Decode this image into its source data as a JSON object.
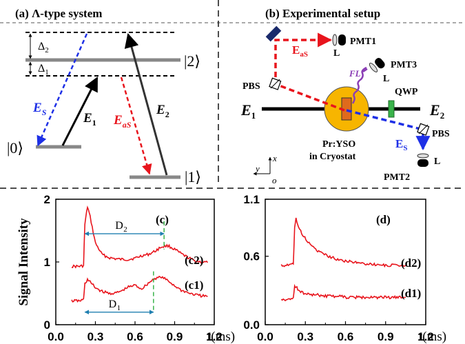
{
  "panel_a": {
    "title": "(a) Λ-type  system",
    "levels": {
      "level0": "|0⟩",
      "level1": "|1⟩",
      "level2": "|2⟩"
    },
    "detunings": {
      "d2": "Δ",
      "d2_sub": "2",
      "d1": "Δ",
      "d1_sub": "1"
    },
    "fields": {
      "es": "E",
      "es_sub": "S",
      "e1": "E",
      "e1_sub": "1",
      "eas": "E",
      "eas_sub": "aS",
      "e2": "E",
      "e2_sub": "2"
    }
  },
  "panel_b": {
    "title": "(b) Experimental setup",
    "labels": {
      "pmt1": "PMT1",
      "pmt2": "PMT2",
      "pmt3": "PMT3",
      "lens": "L",
      "fl": "FL",
      "qwp": "QWP",
      "pbs": "PBS",
      "sample_line1": "Pr:YSO",
      "sample_line2": "in Cryostat",
      "e1": "E",
      "e1_sub": "1",
      "e2": "E",
      "e2_sub": "2",
      "eas": "E",
      "eas_sub": "aS",
      "es": "E",
      "es_sub": "S",
      "axis_x": "x",
      "axis_y": "y",
      "axis_o": "o"
    }
  },
  "colors": {
    "red": "#e8141c",
    "blue": "#1e30e6",
    "sample": "#f7b500",
    "crystal": "#e06a1c",
    "qwp": "#39b34a",
    "fl": "#8a3db5",
    "gray": "#888888"
  },
  "chart_data": [
    {
      "type": "line",
      "panel": "(c)",
      "ylabel": "Signal Intensity",
      "xlabel": "t(ms)",
      "xlim": [
        0.0,
        1.2
      ],
      "ylim": [
        0,
        2
      ],
      "xticks": [
        "0.0",
        "0.3",
        "0.6",
        "0.9",
        "1.2"
      ],
      "yticks": [
        "0",
        "1",
        "2"
      ],
      "x_tick_values": [
        0.0,
        0.3,
        0.6,
        0.9,
        1.2
      ],
      "y_tick_values": [
        0,
        1,
        2
      ],
      "series": [
        {
          "name": "(c2)",
          "x": [
            0.12,
            0.18,
            0.21,
            0.22,
            0.24,
            0.26,
            0.3,
            0.35,
            0.4,
            0.45,
            0.5,
            0.55,
            0.6,
            0.65,
            0.7,
            0.75,
            0.8,
            0.85,
            0.9,
            0.95,
            1.0,
            1.05,
            1.1,
            1.15
          ],
          "values": [
            0.93,
            0.93,
            0.94,
            1.6,
            1.88,
            1.72,
            1.3,
            1.12,
            1.07,
            1.05,
            1.04,
            1.04,
            1.06,
            1.1,
            1.12,
            1.17,
            1.24,
            1.26,
            1.2,
            1.13,
            1.07,
            1.02,
            1.0,
            0.99
          ]
        },
        {
          "name": "(c1)",
          "x": [
            0.12,
            0.18,
            0.21,
            0.22,
            0.24,
            0.26,
            0.3,
            0.35,
            0.4,
            0.45,
            0.5,
            0.55,
            0.6,
            0.65,
            0.7,
            0.75,
            0.8,
            0.85,
            0.9,
            0.95,
            1.0,
            1.05,
            1.1,
            1.15
          ],
          "values": [
            0.38,
            0.38,
            0.4,
            0.65,
            0.72,
            0.68,
            0.59,
            0.53,
            0.5,
            0.5,
            0.54,
            0.6,
            0.63,
            0.57,
            0.66,
            0.74,
            0.76,
            0.7,
            0.62,
            0.55,
            0.51,
            0.48,
            0.46,
            0.45
          ]
        }
      ],
      "annotations": {
        "panel_label": "(c)",
        "d2": "D",
        "d2_sub": "2",
        "d2_range": [
          0.22,
          0.82
        ],
        "d2_y": 1.45,
        "d1": "D",
        "d1_sub": "1",
        "d1_range": [
          0.22,
          0.74
        ],
        "d1_y": 0.2,
        "marker1_x": 0.82,
        "marker2_x": 0.74
      }
    },
    {
      "type": "line",
      "panel": "(d)",
      "xlabel": "t(ms)",
      "xlim": [
        0.0,
        1.2
      ],
      "ylim": [
        0.0,
        1.1
      ],
      "xticks": [
        "0.0",
        "0.3",
        "0.6",
        "0.9",
        "1.2"
      ],
      "yticks": [
        "0.0",
        "0.6",
        "1.1"
      ],
      "x_tick_values": [
        0.0,
        0.3,
        0.6,
        0.9,
        1.2
      ],
      "y_tick_values": [
        0.0,
        0.6,
        1.1
      ],
      "series": [
        {
          "name": "(d2)",
          "x": [
            0.12,
            0.18,
            0.21,
            0.22,
            0.23,
            0.25,
            0.28,
            0.32,
            0.36,
            0.4,
            0.45,
            0.5,
            0.55,
            0.6,
            0.7,
            0.8,
            0.9,
            1.0,
            1.05
          ],
          "values": [
            0.52,
            0.52,
            0.53,
            0.85,
            0.93,
            0.85,
            0.79,
            0.72,
            0.68,
            0.64,
            0.61,
            0.59,
            0.57,
            0.56,
            0.54,
            0.53,
            0.52,
            0.52,
            0.52
          ]
        },
        {
          "name": "(d1)",
          "x": [
            0.12,
            0.18,
            0.21,
            0.22,
            0.23,
            0.25,
            0.28,
            0.32,
            0.36,
            0.4,
            0.45,
            0.5,
            0.55,
            0.6,
            0.7,
            0.8,
            0.9,
            1.0,
            1.05
          ],
          "values": [
            0.22,
            0.22,
            0.23,
            0.33,
            0.34,
            0.3,
            0.28,
            0.27,
            0.26,
            0.26,
            0.25,
            0.25,
            0.25,
            0.24,
            0.24,
            0.24,
            0.24,
            0.24,
            0.24
          ]
        }
      ],
      "annotations": {
        "panel_label": "(d)"
      }
    }
  ]
}
